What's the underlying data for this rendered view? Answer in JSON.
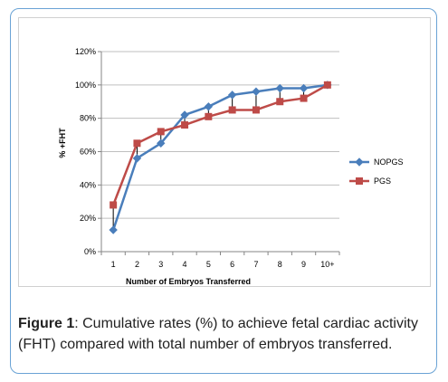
{
  "chart_data": {
    "type": "line",
    "categories": [
      "1",
      "2",
      "3",
      "4",
      "5",
      "6",
      "7",
      "8",
      "9",
      "10+"
    ],
    "series": [
      {
        "name": "NOPGS",
        "values": [
          13,
          56,
          65,
          82,
          87,
          94,
          96,
          98,
          98,
          100
        ],
        "color": "#4a7ebb",
        "marker": "diamond"
      },
      {
        "name": "PGS",
        "values": [
          28,
          65,
          72,
          76,
          81,
          85,
          85,
          90,
          92,
          100
        ],
        "color": "#be4b48",
        "marker": "square"
      }
    ],
    "ylim": [
      0,
      120
    ],
    "yticks": [
      "0%",
      "20%",
      "40%",
      "60%",
      "80%",
      "100%",
      "120%"
    ],
    "ytick_values": [
      0,
      20,
      40,
      60,
      80,
      100,
      120
    ],
    "xlabel": "Number of Embryos Transferred",
    "ylabel": "% +FHT",
    "legend_position": "right",
    "grid": "horizontal",
    "high_low_lines": true
  },
  "caption": {
    "label": "Figure 1",
    "text": ": Cumulative rates (%) to achieve fetal cardiac activity (FHT) compared with total number of embryos transferred."
  }
}
